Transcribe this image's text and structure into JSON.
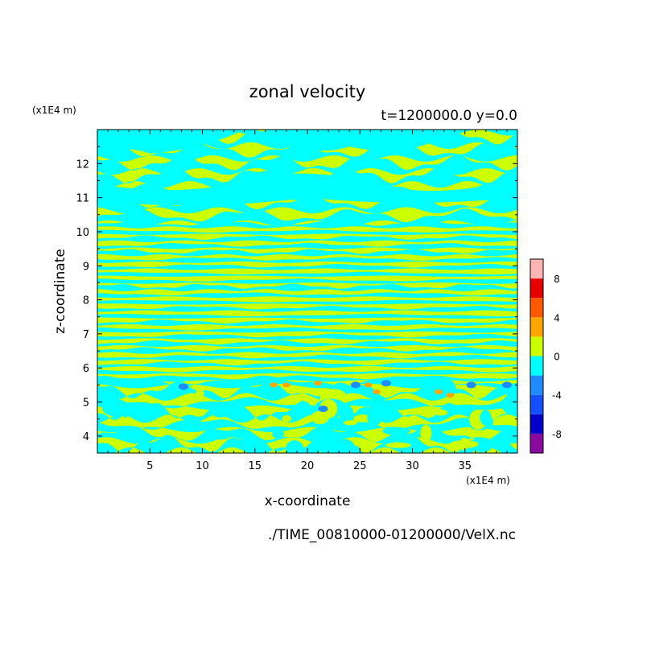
{
  "chart_data": {
    "type": "heatmap",
    "title": "zonal velocity",
    "subtitle": "t=1200000.0 y=0.0",
    "xlabel": "x-coordinate",
    "ylabel": "z-coordinate",
    "x_scale_label": "(x1E4 m)",
    "y_scale_label": "(x1E4 m)",
    "xlim": [
      0,
      40
    ],
    "ylim": [
      3.5,
      13
    ],
    "x_ticks": [
      5,
      10,
      15,
      20,
      25,
      30,
      35
    ],
    "y_ticks": [
      4,
      5,
      6,
      7,
      8,
      9,
      10,
      11,
      12
    ],
    "source_file": "./TIME_00810000-01200000/VelX.nc",
    "colorbar": {
      "levels": [
        -10,
        -8,
        -6,
        -4,
        -2,
        0,
        2,
        4,
        6,
        8,
        10
      ],
      "colors": [
        "#8a0aa0",
        "#0000c8",
        "#1450ff",
        "#1e8cff",
        "#00ffff",
        "#ccff00",
        "#ffa500",
        "#ff5a00",
        "#e60000",
        "#ffb4b4"
      ],
      "tick_labels": [
        "8",
        "4",
        "0",
        "-4",
        "-8"
      ],
      "tick_values": [
        8,
        4,
        0,
        -4,
        -8
      ]
    },
    "colors": {
      "negative_small": "#00ffff",
      "positive_small": "#ccff00",
      "negative_medium": "#1e8cff",
      "positive_medium": "#ffa500"
    }
  }
}
